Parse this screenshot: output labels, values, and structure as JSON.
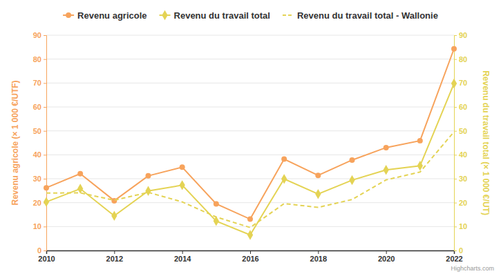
{
  "chart_data": {
    "type": "line",
    "x": [
      2010,
      2011,
      2012,
      2013,
      2014,
      2015,
      2016,
      2017,
      2018,
      2019,
      2020,
      2021,
      2022
    ],
    "xlim": [
      2010,
      2022
    ],
    "xticks": [
      2010,
      2012,
      2014,
      2016,
      2018,
      2020,
      2022
    ],
    "ylim": [
      0,
      90
    ],
    "yticks": [
      0,
      10,
      20,
      30,
      40,
      50,
      60,
      70,
      80,
      90
    ],
    "y2lim": [
      0,
      90
    ],
    "y2ticks": [
      0,
      10,
      20,
      30,
      40,
      50,
      60,
      70,
      80,
      90
    ],
    "y_label": "Revenu agricole (× 1 000 €/UTF)",
    "y2_label": "Revenu du travail total (× 1 000 €/UT)",
    "credits": "Highcharts.com",
    "grid": true,
    "legend": "top",
    "series": [
      {
        "name": "Revenu agricole",
        "color": "#f7a35c",
        "marker": "circle",
        "line_style": "solid",
        "values": [
          26.2,
          32.1,
          20.8,
          31.2,
          34.8,
          19.5,
          13.1,
          38.2,
          31.4,
          37.8,
          43.0,
          45.9,
          84.3
        ]
      },
      {
        "name": "Revenu du travail total",
        "color": "#e4d354",
        "marker": "diamond",
        "line_style": "solid",
        "axis": "y2",
        "values": [
          20.3,
          25.8,
          14.5,
          24.9,
          27.3,
          12.3,
          6.5,
          29.9,
          23.6,
          29.4,
          33.7,
          35.4,
          69.8
        ]
      },
      {
        "name": "Revenu du travail total - Wallonie",
        "color": "#e4d354",
        "marker": "none",
        "line_style": "dashed",
        "axis": "y2",
        "values": [
          24.0,
          24.1,
          21.0,
          24.3,
          20.3,
          14.0,
          9.6,
          19.6,
          18.0,
          21.3,
          29.5,
          32.8,
          49.6
        ]
      }
    ]
  }
}
